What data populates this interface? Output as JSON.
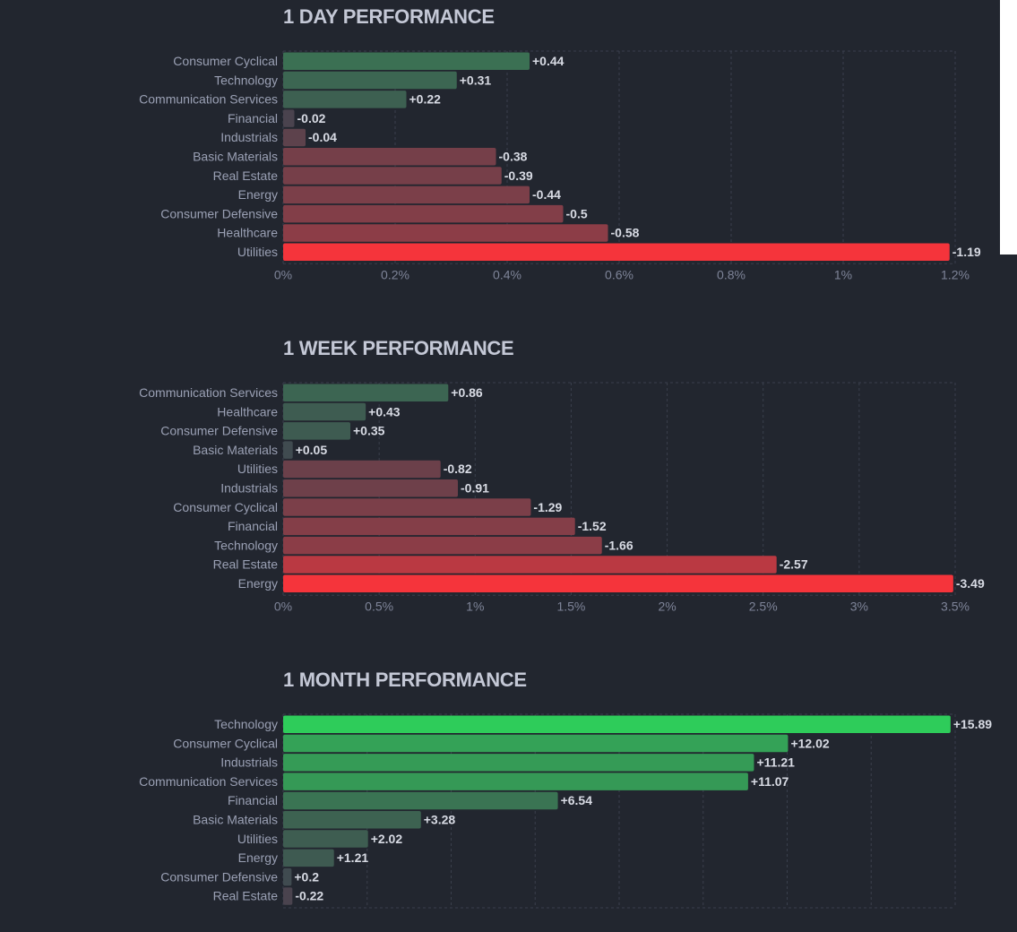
{
  "chart_data": [
    {
      "type": "bar",
      "orientation": "horizontal",
      "title": "1 DAY PERFORMANCE",
      "categories": [
        "Consumer Cyclical",
        "Technology",
        "Communication Services",
        "Financial",
        "Industrials",
        "Basic Materials",
        "Real Estate",
        "Energy",
        "Consumer Defensive",
        "Healthcare",
        "Utilities"
      ],
      "values": [
        0.44,
        0.31,
        0.22,
        -0.02,
        -0.04,
        -0.38,
        -0.39,
        -0.44,
        -0.5,
        -0.58,
        -1.19
      ],
      "value_labels": [
        "+0.44",
        "+0.31",
        "+0.22",
        "-0.02",
        "-0.04",
        "-0.38",
        "-0.39",
        "-0.44",
        "-0.5",
        "-0.58",
        "-1.19"
      ],
      "xlim": [
        0,
        1.2
      ],
      "xticks": [
        0,
        0.2,
        0.4,
        0.6,
        0.8,
        1,
        1.2
      ],
      "xtick_labels": [
        "0%",
        "0.2%",
        "0.4%",
        "0.6%",
        "0.8%",
        "1%",
        "1.2%"
      ],
      "bar_length": "absolute value",
      "grid": true
    },
    {
      "type": "bar",
      "orientation": "horizontal",
      "title": "1 WEEK PERFORMANCE",
      "categories": [
        "Communication Services",
        "Healthcare",
        "Consumer Defensive",
        "Basic Materials",
        "Utilities",
        "Industrials",
        "Consumer Cyclical",
        "Financial",
        "Technology",
        "Real Estate",
        "Energy"
      ],
      "values": [
        0.86,
        0.43,
        0.35,
        0.05,
        -0.82,
        -0.91,
        -1.29,
        -1.52,
        -1.66,
        -2.57,
        -3.49
      ],
      "value_labels": [
        "+0.86",
        "+0.43",
        "+0.35",
        "+0.05",
        "-0.82",
        "-0.91",
        "-1.29",
        "-1.52",
        "-1.66",
        "-2.57",
        "-3.49"
      ],
      "xlim": [
        0,
        3.5
      ],
      "xticks": [
        0,
        0.5,
        1,
        1.5,
        2,
        2.5,
        3,
        3.5
      ],
      "xtick_labels": [
        "0%",
        "0.5%",
        "1%",
        "1.5%",
        "2%",
        "2.5%",
        "3%",
        "3.5%"
      ],
      "bar_length": "absolute value",
      "grid": true
    },
    {
      "type": "bar",
      "orientation": "horizontal",
      "title": "1 MONTH PERFORMANCE",
      "categories": [
        "Technology",
        "Consumer Cyclical",
        "Industrials",
        "Communication Services",
        "Financial",
        "Basic Materials",
        "Utilities",
        "Energy",
        "Consumer Defensive",
        "Real Estate"
      ],
      "values": [
        15.89,
        12.02,
        11.21,
        11.07,
        6.54,
        3.28,
        2.02,
        1.21,
        0.2,
        -0.22
      ],
      "value_labels": [
        "+15.89",
        "+12.02",
        "+11.21",
        "+11.07",
        "+6.54",
        "+3.28",
        "+2.02",
        "+1.21",
        "+0.2",
        "-0.22"
      ],
      "xlim": [
        0,
        16
      ],
      "xticks": [
        0,
        2,
        4,
        6,
        8,
        10,
        12,
        14,
        16
      ],
      "xtick_labels": [],
      "bar_length": "absolute value",
      "grid": true
    }
  ],
  "colors": {
    "background": "#22262f",
    "positive_strong": "#2ecc5a",
    "positive_mid": "#2f9a4e",
    "positive_weak": "#3a5e4f",
    "neutral": "#41444f",
    "negative_weak": "#7a4450",
    "negative_mid": "#a8444c",
    "negative_strong": "#f5343b"
  }
}
